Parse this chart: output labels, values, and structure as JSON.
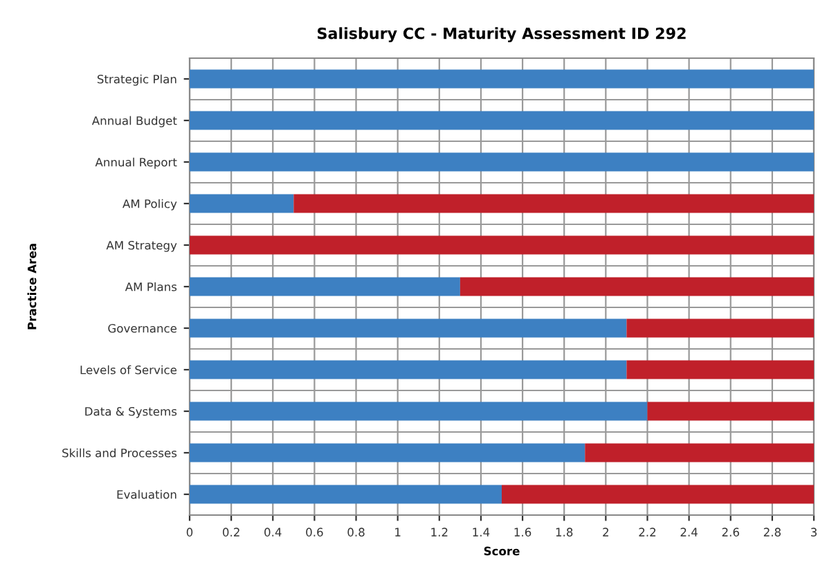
{
  "chart_data": {
    "type": "bar",
    "orientation": "horizontal",
    "stacked": true,
    "title": "Salisbury CC - Maturity Assessment ID 292",
    "xlabel": "Score",
    "ylabel": "Practice Area",
    "categories": [
      "Strategic Plan",
      "Annual Budget",
      "Annual Report",
      "AM Policy",
      "AM Strategy",
      "AM Plans",
      "Governance",
      "Levels of Service",
      "Data & Systems",
      "Skills and Processes",
      "Evaluation"
    ],
    "series": [
      {
        "color": "#3d80c2",
        "values": [
          3,
          3,
          3,
          0.5,
          0,
          1.3,
          2.1,
          2.1,
          2.2,
          1.9,
          1.5
        ]
      },
      {
        "color": "#c0202a",
        "values": [
          0,
          0,
          0,
          2.5,
          3,
          1.7,
          0.9,
          0.9,
          0.8,
          1.1,
          1.5
        ]
      }
    ],
    "xlim": [
      0,
      3
    ],
    "xticks": [
      0,
      0.2,
      0.4,
      0.6,
      0.8,
      1,
      1.2,
      1.4,
      1.6,
      1.8,
      2,
      2.2,
      2.4,
      2.6,
      2.8,
      3
    ],
    "grid": true,
    "legend": false
  }
}
